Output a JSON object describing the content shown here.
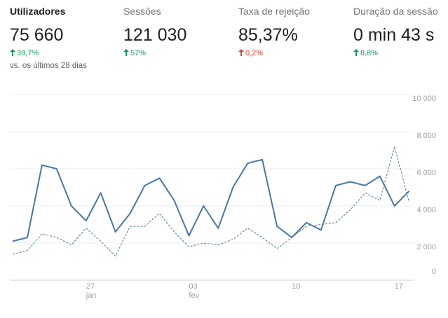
{
  "metrics": [
    {
      "title": "Utilizadores",
      "value": "75 660",
      "change": "39,7%",
      "trend": "up",
      "color": "#0f9d58",
      "note": "vs. os últimos 28 dias"
    },
    {
      "title": "Sessões",
      "value": "121 030",
      "change": "57%",
      "trend": "up",
      "color": "#0f9d58"
    },
    {
      "title": "Taxa de rejeição",
      "value": "85,37%",
      "change": "0,2%",
      "trend": "up",
      "color": "#db4437"
    },
    {
      "title": "Duração da sessão",
      "value": "0 min 43 s",
      "change": "8,8%",
      "trend": "up",
      "color": "#0f9d58"
    }
  ],
  "chart_data": {
    "type": "line",
    "categories": [
      null,
      null,
      null,
      null,
      null,
      "27 jan",
      null,
      null,
      null,
      null,
      null,
      null,
      "03 fev",
      null,
      null,
      null,
      null,
      null,
      null,
      "10",
      null,
      null,
      null,
      null,
      null,
      null,
      "17",
      null
    ],
    "series": [
      {
        "color": "#4a76a8",
        "dashed": false,
        "values": [
          2100,
          2300,
          6200,
          6000,
          4000,
          3200,
          4700,
          2600,
          3600,
          5100,
          5500,
          4300,
          2400,
          4000,
          2800,
          5000,
          6300,
          6500,
          2900,
          2300,
          3100,
          2700,
          5100,
          5300,
          5100,
          5600,
          4000,
          4800
        ]
      },
      {
        "color": "#4a76a8",
        "dashed": true,
        "values": [
          1400,
          1600,
          2500,
          2300,
          1900,
          2800,
          2100,
          1300,
          2900,
          2900,
          3600,
          2600,
          1800,
          2000,
          1900,
          2200,
          2800,
          2300,
          1700,
          2300,
          2900,
          3000,
          3100,
          3800,
          4700,
          4300,
          7200,
          4200
        ]
      }
    ],
    "ylim": [
      0,
      10000
    ],
    "yticks": [
      0,
      {
        "value": 2000,
        "label": "2 000"
      },
      {
        "value": 4000,
        "label": "4 000"
      },
      {
        "value": 6000,
        "label": "6 000"
      },
      {
        "value": 8000,
        "label": "8 000"
      },
      {
        "value": 10000,
        "label": "10 000"
      }
    ],
    "grid": true
  }
}
